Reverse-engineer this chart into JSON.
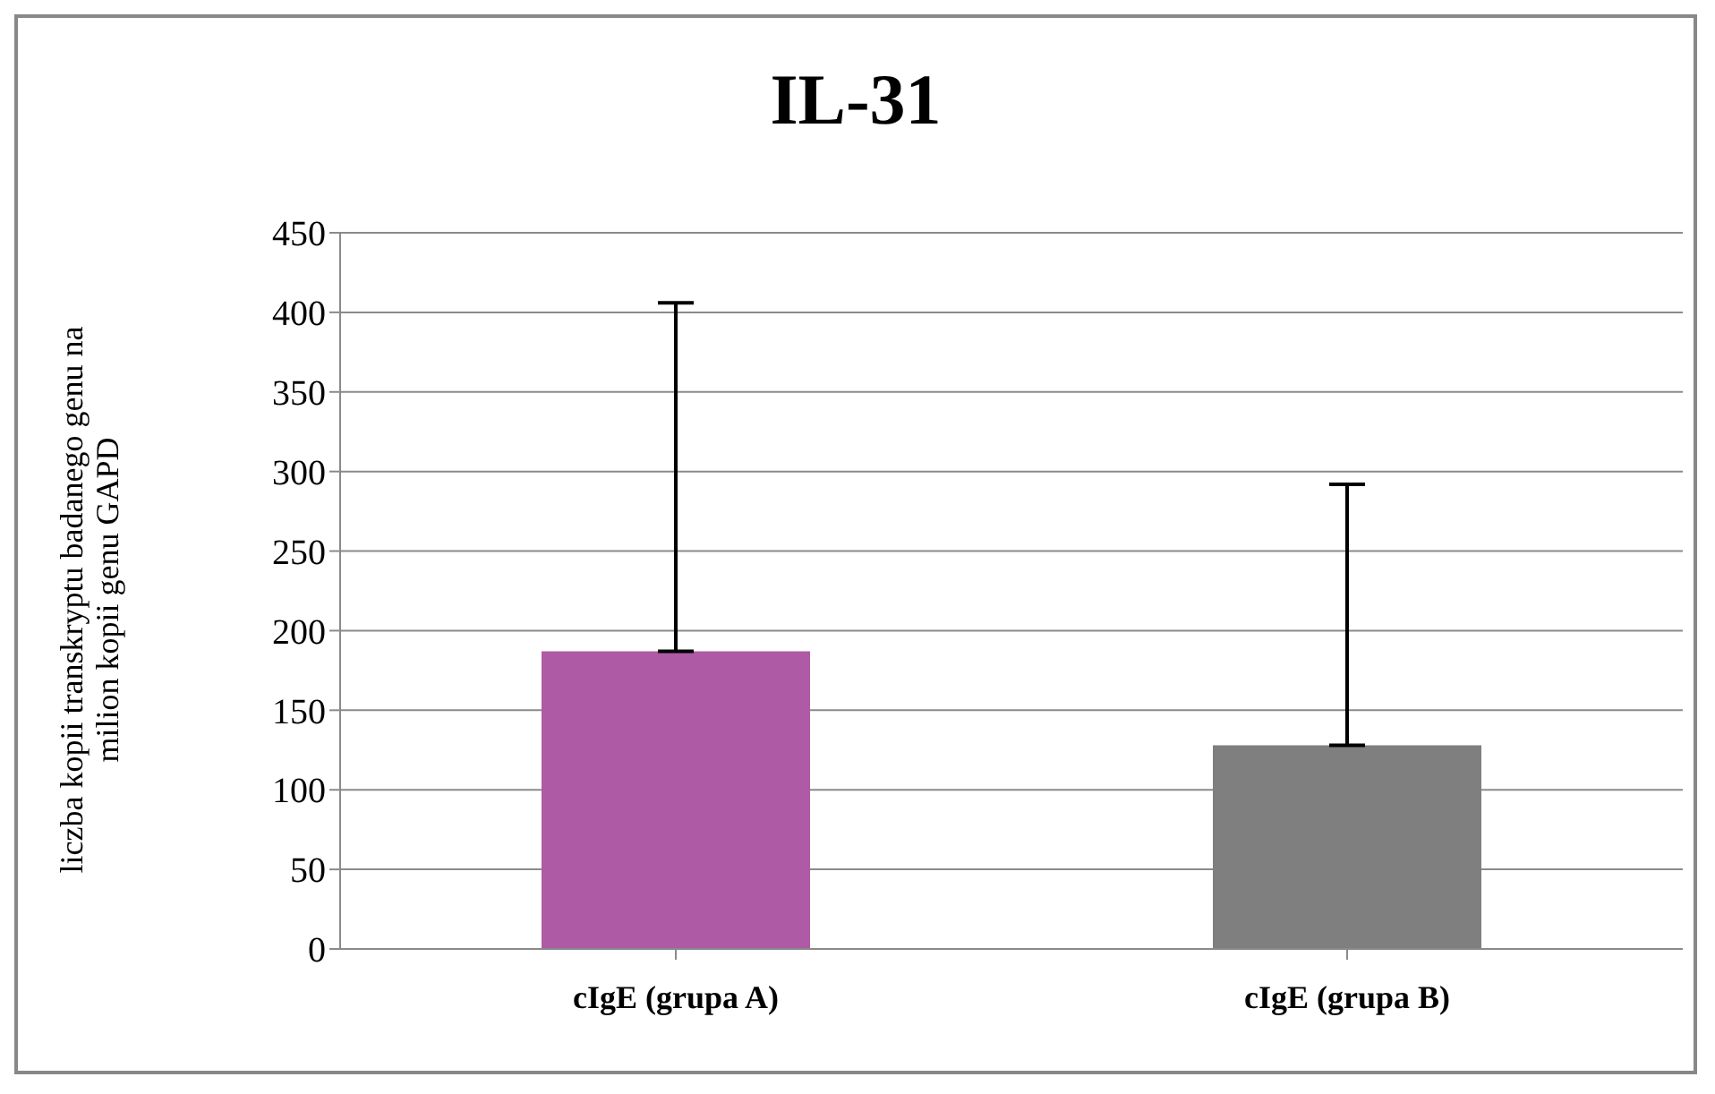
{
  "chart_data": {
    "type": "bar",
    "title": "IL-31",
    "ylabel": "liczba kopii transkryptu badanego genu na milion kopii genu GAPD",
    "categories": [
      "cIgE (grupa A)",
      "cIgE (grupa B)"
    ],
    "values": [
      187,
      128
    ],
    "colors": [
      "#ae5aa5",
      "#7f7f7f"
    ],
    "errors": [
      [
        187,
        406
      ],
      [
        128,
        292
      ]
    ],
    "ylim": [
      0,
      450
    ],
    "yticks": [
      0,
      50,
      100,
      150,
      200,
      250,
      300,
      350,
      400,
      450
    ],
    "grid": "y"
  }
}
